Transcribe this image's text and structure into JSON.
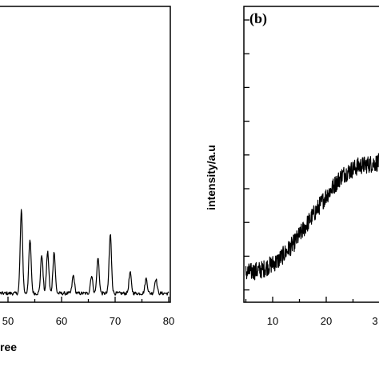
{
  "chart_data": [
    {
      "type": "line",
      "panel_label": "",
      "xlabel": "ree",
      "ylabel": "",
      "xlim": [
        40,
        80
      ],
      "x_ticks": [
        "50",
        "60",
        "70",
        "80"
      ],
      "grid": false,
      "series": [
        {
          "peaks": [
            {
              "x": 52.5,
              "y": 0.28
            },
            {
              "x": 54.1,
              "y": 0.18
            },
            {
              "x": 56.3,
              "y": 0.13
            },
            {
              "x": 57.4,
              "y": 0.14
            },
            {
              "x": 58.6,
              "y": 0.14
            },
            {
              "x": 62.2,
              "y": 0.06
            },
            {
              "x": 65.6,
              "y": 0.06
            },
            {
              "x": 66.8,
              "y": 0.12
            },
            {
              "x": 69.1,
              "y": 0.2
            },
            {
              "x": 72.8,
              "y": 0.07
            },
            {
              "x": 75.8,
              "y": 0.05
            },
            {
              "x": 77.6,
              "y": 0.05
            }
          ],
          "baseline": 0.03
        }
      ]
    },
    {
      "type": "line",
      "panel_label": "(b)",
      "xlabel": "",
      "ylabel": "intensity/a.u",
      "xlim": [
        5,
        32
      ],
      "x_ticks": [
        "10",
        "20",
        "3"
      ],
      "grid": false,
      "series": [
        {
          "profile": [
            {
              "x": 5,
              "y": 0.1
            },
            {
              "x": 8,
              "y": 0.11
            },
            {
              "x": 11,
              "y": 0.14
            },
            {
              "x": 14,
              "y": 0.2
            },
            {
              "x": 17,
              "y": 0.28
            },
            {
              "x": 20,
              "y": 0.36
            },
            {
              "x": 23,
              "y": 0.43
            },
            {
              "x": 26,
              "y": 0.46
            },
            {
              "x": 29,
              "y": 0.47
            },
            {
              "x": 32,
              "y": 0.48
            }
          ],
          "noise": 0.03
        }
      ]
    }
  ]
}
